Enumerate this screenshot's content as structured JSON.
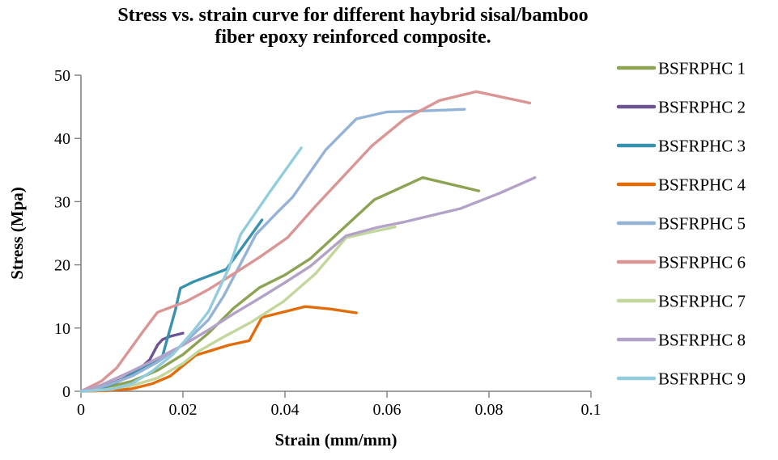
{
  "title": {
    "line1": "Stress vs. strain curve for different haybrid sisal/bamboo",
    "line2": "fiber epoxy reinforced  composite."
  },
  "colors": {
    "axis": "#808080",
    "background": "#ffffff",
    "text": "#000000"
  },
  "chart_data": {
    "type": "line",
    "title": "Stress vs. strain curve for different haybrid sisal/bamboo fiber epoxy reinforced composite.",
    "xlabel": "Strain (mm/mm)",
    "ylabel": "Stress (Mpa)",
    "xlim": [
      0,
      0.1
    ],
    "ylim": [
      0,
      50
    ],
    "x_ticks": [
      0,
      0.02,
      0.04,
      0.06,
      0.08,
      0.1
    ],
    "x_tick_labels": [
      "0",
      "0.02",
      "0.04",
      "0.06",
      "0.08",
      "0.1"
    ],
    "y_ticks": [
      0,
      10,
      20,
      30,
      40,
      50
    ],
    "y_tick_labels": [
      "0",
      "10",
      "20",
      "30",
      "40",
      "50"
    ],
    "grid": false,
    "legend_position": "right",
    "series": [
      {
        "name": "BSFRPHC 1",
        "color": "#8CA353",
        "points": [
          [
            0,
            0
          ],
          [
            0.005,
            0.6
          ],
          [
            0.01,
            1.6
          ],
          [
            0.015,
            3.3
          ],
          [
            0.02,
            5.8
          ],
          [
            0.025,
            9.2
          ],
          [
            0.03,
            13.2
          ],
          [
            0.035,
            16.4
          ],
          [
            0.04,
            18.4
          ],
          [
            0.045,
            21.0
          ],
          [
            0.0575,
            30.3
          ],
          [
            0.067,
            33.8
          ],
          [
            0.078,
            31.7
          ]
        ]
      },
      {
        "name": "BSFRPHC 2",
        "color": "#6C5490",
        "points": [
          [
            0,
            0
          ],
          [
            0.004,
            0.6
          ],
          [
            0.008,
            1.9
          ],
          [
            0.011,
            3.2
          ],
          [
            0.0135,
            5.0
          ],
          [
            0.015,
            7.3
          ],
          [
            0.016,
            8.2
          ],
          [
            0.0175,
            8.7
          ],
          [
            0.02,
            9.2
          ]
        ]
      },
      {
        "name": "BSFRPHC 3",
        "color": "#3892AE",
        "points": [
          [
            0,
            0
          ],
          [
            0.004,
            0.4
          ],
          [
            0.008,
            1.8
          ],
          [
            0.012,
            3.6
          ],
          [
            0.016,
            5.6
          ],
          [
            0.0185,
            12.8
          ],
          [
            0.0195,
            16.3
          ],
          [
            0.022,
            17.3
          ],
          [
            0.0285,
            19.3
          ],
          [
            0.0355,
            27.1
          ]
        ]
      },
      {
        "name": "BSFRPHC 4",
        "color": "#E36C0A",
        "points": [
          [
            0,
            0
          ],
          [
            0.005,
            0.1
          ],
          [
            0.01,
            0.4
          ],
          [
            0.014,
            1.2
          ],
          [
            0.0175,
            2.4
          ],
          [
            0.0225,
            5.7
          ],
          [
            0.029,
            7.3
          ],
          [
            0.033,
            8.0
          ],
          [
            0.0355,
            11.7
          ],
          [
            0.044,
            13.4
          ],
          [
            0.049,
            13.0
          ],
          [
            0.054,
            12.4
          ]
        ]
      },
      {
        "name": "BSFRPHC 5",
        "color": "#95B3D7",
        "points": [
          [
            0,
            0
          ],
          [
            0.005,
            0.9
          ],
          [
            0.01,
            2.4
          ],
          [
            0.015,
            4.6
          ],
          [
            0.02,
            7.4
          ],
          [
            0.025,
            11.3
          ],
          [
            0.028,
            15.1
          ],
          [
            0.0343,
            24.8
          ],
          [
            0.0385,
            28.3
          ],
          [
            0.0415,
            30.7
          ],
          [
            0.048,
            38.2
          ],
          [
            0.054,
            43.1
          ],
          [
            0.06,
            44.2
          ],
          [
            0.0655,
            44.3
          ],
          [
            0.0752,
            44.6
          ]
        ]
      },
      {
        "name": "BSFRPHC 6",
        "color": "#D99694",
        "points": [
          [
            0,
            0
          ],
          [
            0.004,
            1.6
          ],
          [
            0.007,
            3.7
          ],
          [
            0.0124,
            9.7
          ],
          [
            0.015,
            12.5
          ],
          [
            0.0206,
            14.2
          ],
          [
            0.025,
            16.1
          ],
          [
            0.03,
            18.6
          ],
          [
            0.035,
            21.2
          ],
          [
            0.0405,
            24.3
          ],
          [
            0.046,
            29.3
          ],
          [
            0.051,
            33.6
          ],
          [
            0.057,
            38.8
          ],
          [
            0.0635,
            43.1
          ],
          [
            0.0703,
            46.0
          ],
          [
            0.0775,
            47.4
          ],
          [
            0.088,
            45.6
          ]
        ]
      },
      {
        "name": "BSFRPHC 7",
        "color": "#C3D69B",
        "points": [
          [
            0,
            0
          ],
          [
            0.005,
            0.3
          ],
          [
            0.01,
            0.9
          ],
          [
            0.015,
            2.1
          ],
          [
            0.02,
            4.4
          ],
          [
            0.023,
            6.3
          ],
          [
            0.028,
            8.6
          ],
          [
            0.0333,
            10.9
          ],
          [
            0.0397,
            14.2
          ],
          [
            0.046,
            18.6
          ],
          [
            0.052,
            24.3
          ],
          [
            0.057,
            25.2
          ],
          [
            0.0616,
            26.0
          ]
        ]
      },
      {
        "name": "BSFRPHC 8",
        "color": "#B3A2C7",
        "points": [
          [
            0,
            0
          ],
          [
            0.004,
            1.0
          ],
          [
            0.01,
            3.2
          ],
          [
            0.015,
            5.2
          ],
          [
            0.02,
            7.3
          ],
          [
            0.025,
            9.7
          ],
          [
            0.03,
            12.3
          ],
          [
            0.035,
            14.7
          ],
          [
            0.04,
            17.2
          ],
          [
            0.045,
            19.8
          ],
          [
            0.052,
            24.6
          ],
          [
            0.058,
            25.9
          ],
          [
            0.0635,
            26.8
          ],
          [
            0.0744,
            28.9
          ],
          [
            0.082,
            31.3
          ],
          [
            0.089,
            33.8
          ]
        ]
      },
      {
        "name": "BSFRPHC 9",
        "color": "#93CDDD",
        "points": [
          [
            0,
            0
          ],
          [
            0.006,
            0.3
          ],
          [
            0.01,
            1.2
          ],
          [
            0.014,
            3.2
          ],
          [
            0.018,
            5.8
          ],
          [
            0.022,
            9.5
          ],
          [
            0.025,
            12.6
          ],
          [
            0.029,
            19.5
          ],
          [
            0.0313,
            24.8
          ],
          [
            0.037,
            31.5
          ],
          [
            0.0432,
            38.5
          ]
        ]
      }
    ]
  }
}
